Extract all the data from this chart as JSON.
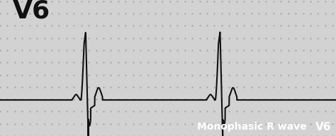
{
  "background_color": "#d2d2d2",
  "grid_dot_color": "#999999",
  "ecg_color": "#111111",
  "lead_label": "V6",
  "lead_label_fontsize": 26,
  "lead_label_color": "#111111",
  "annotation_text": "Monophasic R wave",
  "annotation_bg": "#2fa0d8",
  "annotation_text_color": "#ffffff",
  "annotation_fontsize": 10,
  "badge_text": "V6",
  "badge_bg": "#d43030",
  "badge_text_color": "#ffffff",
  "badge_fontsize": 11,
  "xlim": [
    0,
    10
  ],
  "ylim": [
    -0.55,
    1.45
  ],
  "figsize": [
    4.74,
    1.92
  ],
  "dpi": 100,
  "beats": [
    2.5,
    6.5
  ],
  "baseline": -0.02
}
